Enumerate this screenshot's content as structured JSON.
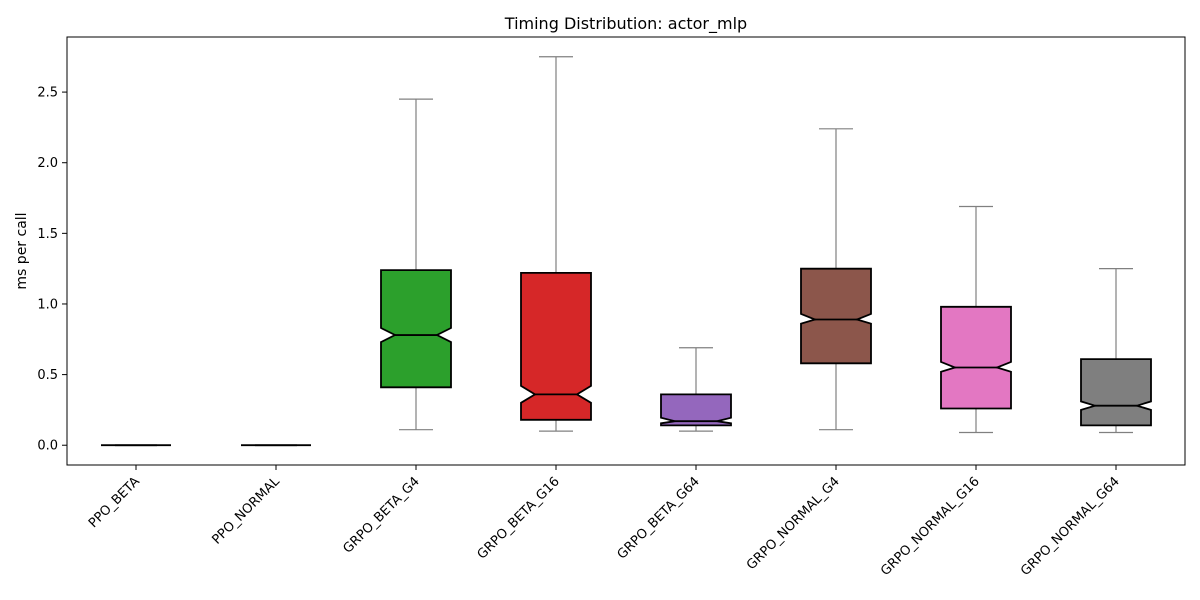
{
  "chart_data": {
    "type": "box",
    "title": "Timing Distribution: actor_mlp",
    "xlabel": "",
    "ylabel": "ms per call",
    "ylim": [
      -0.14,
      2.89
    ],
    "yticks": [
      0.0,
      0.5,
      1.0,
      1.5,
      2.0,
      2.5
    ],
    "ytick_labels": [
      "0.0",
      "0.5",
      "1.0",
      "1.5",
      "2.0",
      "2.5"
    ],
    "notched": true,
    "grid": false,
    "categories": [
      "PPO_BETA",
      "PPO_NORMAL",
      "GRPO_BETA_G4",
      "GRPO_BETA_G16",
      "GRPO_BETA_G64",
      "GRPO_NORMAL_G4",
      "GRPO_NORMAL_G16",
      "GRPO_NORMAL_G64"
    ],
    "boxes": [
      {
        "name": "PPO_BETA",
        "whisker_low": 0.0,
        "q1": 0.0,
        "median": 0.0,
        "q3": 0.0,
        "whisker_high": 0.0,
        "notch_low": 0.0,
        "notch_high": 0.0,
        "color": "#1f77b4"
      },
      {
        "name": "PPO_NORMAL",
        "whisker_low": 0.0,
        "q1": 0.0,
        "median": 0.0,
        "q3": 0.0,
        "whisker_high": 0.0,
        "notch_low": 0.0,
        "notch_high": 0.0,
        "color": "#ff7f0e"
      },
      {
        "name": "GRPO_BETA_G4",
        "whisker_low": 0.11,
        "q1": 0.41,
        "median": 0.78,
        "q3": 1.24,
        "whisker_high": 2.45,
        "notch_low": 0.73,
        "notch_high": 0.83,
        "color": "#2ca02c"
      },
      {
        "name": "GRPO_BETA_G16",
        "whisker_low": 0.1,
        "q1": 0.18,
        "median": 0.36,
        "q3": 1.22,
        "whisker_high": 2.75,
        "notch_low": 0.3,
        "notch_high": 0.42,
        "color": "#d62728"
      },
      {
        "name": "GRPO_BETA_G64",
        "whisker_low": 0.1,
        "q1": 0.14,
        "median": 0.17,
        "q3": 0.36,
        "whisker_high": 0.69,
        "notch_low": 0.155,
        "notch_high": 0.195,
        "color": "#9467bd"
      },
      {
        "name": "GRPO_NORMAL_G4",
        "whisker_low": 0.11,
        "q1": 0.58,
        "median": 0.89,
        "q3": 1.25,
        "whisker_high": 2.24,
        "notch_low": 0.86,
        "notch_high": 0.93,
        "color": "#8c564b"
      },
      {
        "name": "GRPO_NORMAL_G16",
        "whisker_low": 0.09,
        "q1": 0.26,
        "median": 0.55,
        "q3": 0.98,
        "whisker_high": 1.69,
        "notch_low": 0.52,
        "notch_high": 0.59,
        "color": "#e377c2"
      },
      {
        "name": "GRPO_NORMAL_G64",
        "whisker_low": 0.09,
        "q1": 0.14,
        "median": 0.28,
        "q3": 0.61,
        "whisker_high": 1.25,
        "notch_low": 0.25,
        "notch_high": 0.31,
        "color": "#7f7f7f"
      }
    ]
  }
}
